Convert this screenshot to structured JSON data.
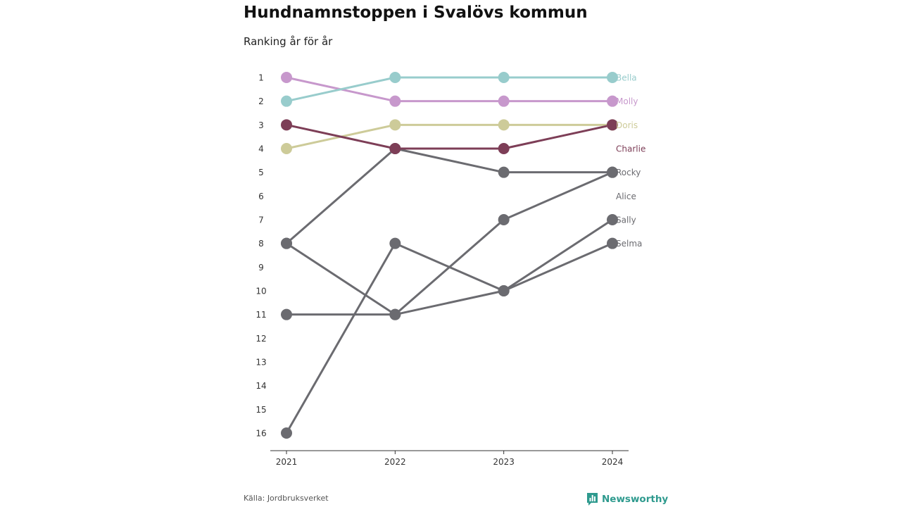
{
  "title": "Hundnamnstoppen i Svalövs kommun",
  "subtitle": "Ranking år för år",
  "source": "Källa: Jordbruksverket",
  "brand": {
    "name": "Newsworthy",
    "icon": "newsworthy-logo-icon",
    "color": "#2e9a8e"
  },
  "chart_data": {
    "type": "line",
    "subtype": "bump",
    "x": [
      "2021",
      "2022",
      "2023",
      "2024"
    ],
    "y_ticks": [
      "1",
      "2",
      "3",
      "4",
      "5",
      "6",
      "7",
      "8",
      "9",
      "10",
      "11",
      "12",
      "13",
      "14",
      "15",
      "16"
    ],
    "ylim": [
      1,
      16
    ],
    "y_reversed": true,
    "grid": false,
    "series": [
      {
        "name": "Sally",
        "color": "#6b6b70",
        "values": [
          16,
          8,
          10,
          7
        ]
      },
      {
        "name": "Selma",
        "color": "#6b6b70",
        "values": [
          8,
          11,
          10,
          8
        ]
      },
      {
        "name": "Alice",
        "color": "#6b6b70",
        "values": [
          11,
          11,
          7,
          5
        ]
      },
      {
        "name": "Rocky",
        "color": "#6b6b70",
        "values": [
          8,
          4,
          5,
          5
        ]
      },
      {
        "name": "Doris",
        "color": "#cdcb99",
        "values": [
          4,
          3,
          3,
          3
        ]
      },
      {
        "name": "Charlie",
        "color": "#7d3e57",
        "values": [
          3,
          4,
          4,
          3
        ]
      },
      {
        "name": "Molly",
        "color": "#c798cc",
        "values": [
          1,
          2,
          2,
          2
        ]
      },
      {
        "name": "Bella",
        "color": "#98cccc",
        "values": [
          2,
          1,
          1,
          1
        ]
      }
    ],
    "label_order": [
      {
        "name": "Bella",
        "rank": 1
      },
      {
        "name": "Molly",
        "rank": 2
      },
      {
        "name": "Doris",
        "rank": 3
      },
      {
        "name": "Charlie",
        "rank": 4
      },
      {
        "name": "Rocky",
        "rank": 5
      },
      {
        "name": "Alice",
        "rank": 6
      },
      {
        "name": "Sally",
        "rank": 7
      },
      {
        "name": "Selma",
        "rank": 8
      }
    ]
  }
}
